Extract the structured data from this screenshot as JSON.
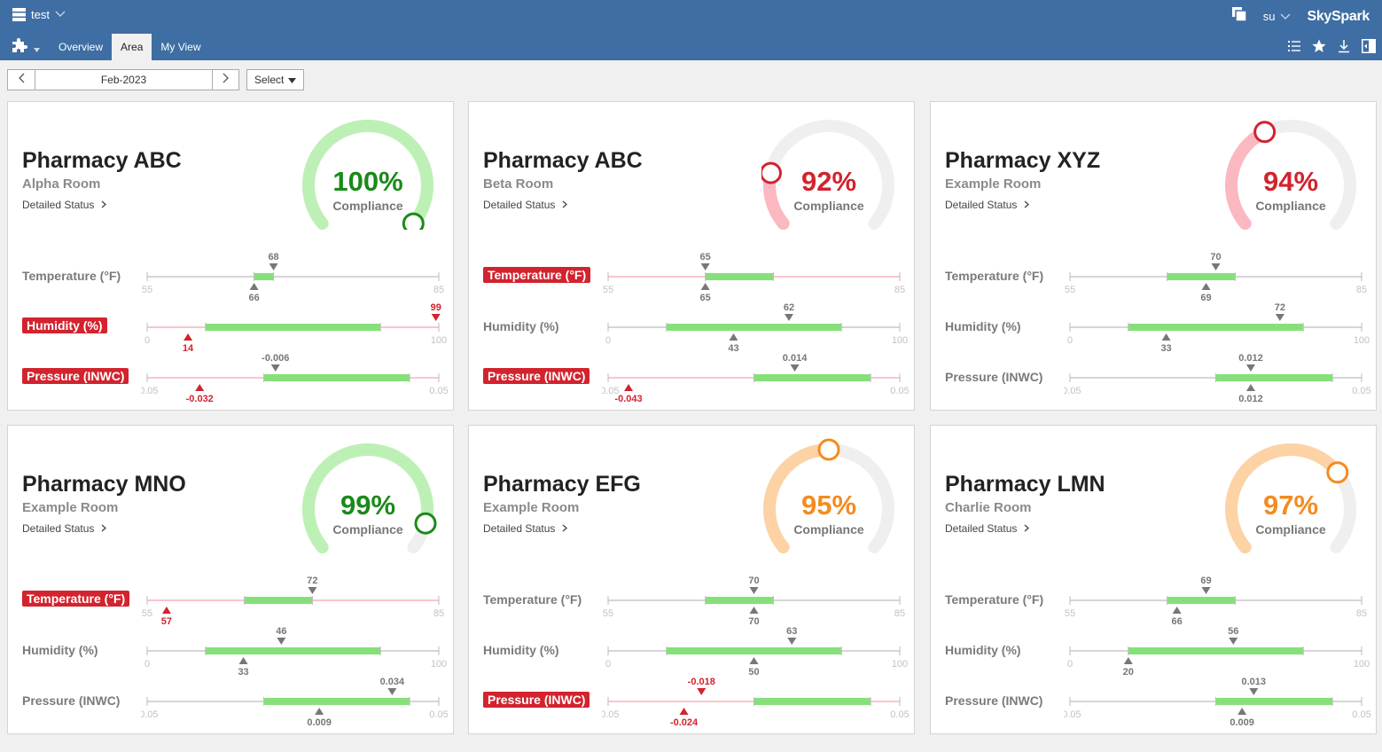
{
  "app": {
    "title": "test",
    "user": "su",
    "brand": "SkySpark"
  },
  "nav": {
    "tabs": [
      {
        "label": "Overview"
      },
      {
        "label": "Area",
        "active": true
      },
      {
        "label": "My View"
      }
    ]
  },
  "toolbar": {
    "date": "Feb-2023",
    "select_label": "Select"
  },
  "icons": [
    "grid-icon",
    "chevron-down-icon",
    "windows-icon",
    "puzzle-icon",
    "list-icon",
    "star-icon",
    "download-icon",
    "panel-icon",
    "chevron-left-icon",
    "chevron-right-icon",
    "caret-down-icon"
  ],
  "colors": {
    "green": "#1a8a1a",
    "red": "#d2232e",
    "orange": "#f58b1f",
    "range_green": "#86e07a"
  },
  "cards": [
    {
      "title": "Pharmacy ABC",
      "subtitle": "Alpha Room",
      "link": "Detailed Status",
      "compliance": {
        "value": 100,
        "display": "100%",
        "label": "Compliance",
        "status": "green"
      },
      "metrics": [
        {
          "label": "Temperature (°F)",
          "alarm": false,
          "min": 55,
          "max": 85,
          "min_label": "55",
          "max_label": "85",
          "range": [
            66,
            68
          ],
          "target": 68,
          "target_label": "68",
          "current": 66,
          "current_label": "66"
        },
        {
          "label": "Humidity (%)",
          "alarm": true,
          "min": 0,
          "max": 100,
          "min_label": "0",
          "max_label": "100",
          "range": [
            20,
            80
          ],
          "target": 99,
          "target_label": "99",
          "current": 14,
          "current_label": "14"
        },
        {
          "label": "Pressure (INWC)",
          "alarm": true,
          "min": -0.05,
          "max": 0.05,
          "min_label": "-0.05",
          "max_label": "0.05",
          "range": [
            -0.01,
            0.04
          ],
          "target": -0.006,
          "target_label": "-0.006",
          "current": -0.032,
          "current_label": "-0.032"
        }
      ]
    },
    {
      "title": "Pharmacy ABC",
      "subtitle": "Beta Room",
      "link": "Detailed Status",
      "compliance": {
        "value": 92,
        "display": "92%",
        "label": "Compliance",
        "status": "red"
      },
      "metrics": [
        {
          "label": "Temperature (°F)",
          "alarm": true,
          "min": 55,
          "max": 85,
          "min_label": "55",
          "max_label": "85",
          "range": [
            65,
            72
          ],
          "target": 65,
          "target_label": "65",
          "current": 65,
          "current_label": "65"
        },
        {
          "label": "Humidity (%)",
          "alarm": false,
          "min": 0,
          "max": 100,
          "min_label": "0",
          "max_label": "100",
          "range": [
            20,
            80
          ],
          "target": 62,
          "target_label": "62",
          "current": 43,
          "current_label": "43"
        },
        {
          "label": "Pressure (INWC)",
          "alarm": true,
          "min": -0.05,
          "max": 0.05,
          "min_label": "-0.05",
          "max_label": "0.05",
          "range": [
            0,
            0.04
          ],
          "target": 0.014,
          "target_label": "0.014",
          "current": -0.043,
          "current_label": "-0.043"
        }
      ]
    },
    {
      "title": "Pharmacy XYZ",
      "subtitle": "Example Room",
      "link": "Detailed Status",
      "compliance": {
        "value": 94,
        "display": "94%",
        "label": "Compliance",
        "status": "red"
      },
      "metrics": [
        {
          "label": "Temperature (°F)",
          "alarm": false,
          "min": 55,
          "max": 85,
          "min_label": "55",
          "max_label": "85",
          "range": [
            65,
            72
          ],
          "target": 70,
          "target_label": "70",
          "current": 69,
          "current_label": "69"
        },
        {
          "label": "Humidity (%)",
          "alarm": false,
          "min": 0,
          "max": 100,
          "min_label": "0",
          "max_label": "100",
          "range": [
            20,
            80
          ],
          "target": 72,
          "target_label": "72",
          "current": 33,
          "current_label": "33"
        },
        {
          "label": "Pressure (INWC)",
          "alarm": false,
          "min": -0.05,
          "max": 0.05,
          "min_label": "-0.05",
          "max_label": "0.05",
          "range": [
            0,
            0.04
          ],
          "target": 0.012,
          "target_label": "0.012",
          "current": 0.012,
          "current_label": "0.012"
        }
      ]
    },
    {
      "title": "Pharmacy MNO",
      "subtitle": "Example Room",
      "link": "Detailed Status",
      "compliance": {
        "value": 99,
        "display": "99%",
        "label": "Compliance",
        "status": "green"
      },
      "metrics": [
        {
          "label": "Temperature (°F)",
          "alarm": true,
          "min": 55,
          "max": 85,
          "min_label": "55",
          "max_label": "85",
          "range": [
            65,
            72
          ],
          "target": 72,
          "target_label": "72",
          "current": 57,
          "current_label": "57"
        },
        {
          "label": "Humidity (%)",
          "alarm": false,
          "min": 0,
          "max": 100,
          "min_label": "0",
          "max_label": "100",
          "range": [
            20,
            80
          ],
          "target": 46,
          "target_label": "46",
          "current": 33,
          "current_label": "33"
        },
        {
          "label": "Pressure (INWC)",
          "alarm": false,
          "min": -0.05,
          "max": 0.05,
          "min_label": "-0.05",
          "max_label": "0.05",
          "range": [
            -0.01,
            0.04
          ],
          "target": 0.034,
          "target_label": "0.034",
          "current": 0.009,
          "current_label": "0.009"
        }
      ]
    },
    {
      "title": "Pharmacy EFG",
      "subtitle": "Example Room",
      "link": "Detailed Status",
      "compliance": {
        "value": 95,
        "display": "95%",
        "label": "Compliance",
        "status": "orange"
      },
      "metrics": [
        {
          "label": "Temperature (°F)",
          "alarm": false,
          "min": 55,
          "max": 85,
          "min_label": "55",
          "max_label": "85",
          "range": [
            65,
            72
          ],
          "target": 70,
          "target_label": "70",
          "current": 70,
          "current_label": "70"
        },
        {
          "label": "Humidity (%)",
          "alarm": false,
          "min": 0,
          "max": 100,
          "min_label": "0",
          "max_label": "100",
          "range": [
            20,
            80
          ],
          "target": 63,
          "target_label": "63",
          "current": 50,
          "current_label": "50"
        },
        {
          "label": "Pressure (INWC)",
          "alarm": true,
          "min": -0.05,
          "max": 0.05,
          "min_label": "-0.05",
          "max_label": "0.05",
          "range": [
            0,
            0.04
          ],
          "target": -0.018,
          "target_label": "-0.018",
          "current": -0.024,
          "current_label": "-0.024"
        }
      ]
    },
    {
      "title": "Pharmacy LMN",
      "subtitle": "Charlie Room",
      "link": "Detailed Status",
      "compliance": {
        "value": 97,
        "display": "97%",
        "label": "Compliance",
        "status": "orange"
      },
      "metrics": [
        {
          "label": "Temperature (°F)",
          "alarm": false,
          "min": 55,
          "max": 85,
          "min_label": "55",
          "max_label": "85",
          "range": [
            65,
            72
          ],
          "target": 69,
          "target_label": "69",
          "current": 66,
          "current_label": "66"
        },
        {
          "label": "Humidity (%)",
          "alarm": false,
          "min": 0,
          "max": 100,
          "min_label": "0",
          "max_label": "100",
          "range": [
            20,
            80
          ],
          "target": 56,
          "target_label": "56",
          "current": 20,
          "current_label": "20"
        },
        {
          "label": "Pressure (INWC)",
          "alarm": false,
          "min": -0.05,
          "max": 0.05,
          "min_label": "-0.05",
          "max_label": "0.05",
          "range": [
            0,
            0.04
          ],
          "target": 0.013,
          "target_label": "0.013",
          "current": 0.009,
          "current_label": "0.009"
        }
      ]
    }
  ]
}
